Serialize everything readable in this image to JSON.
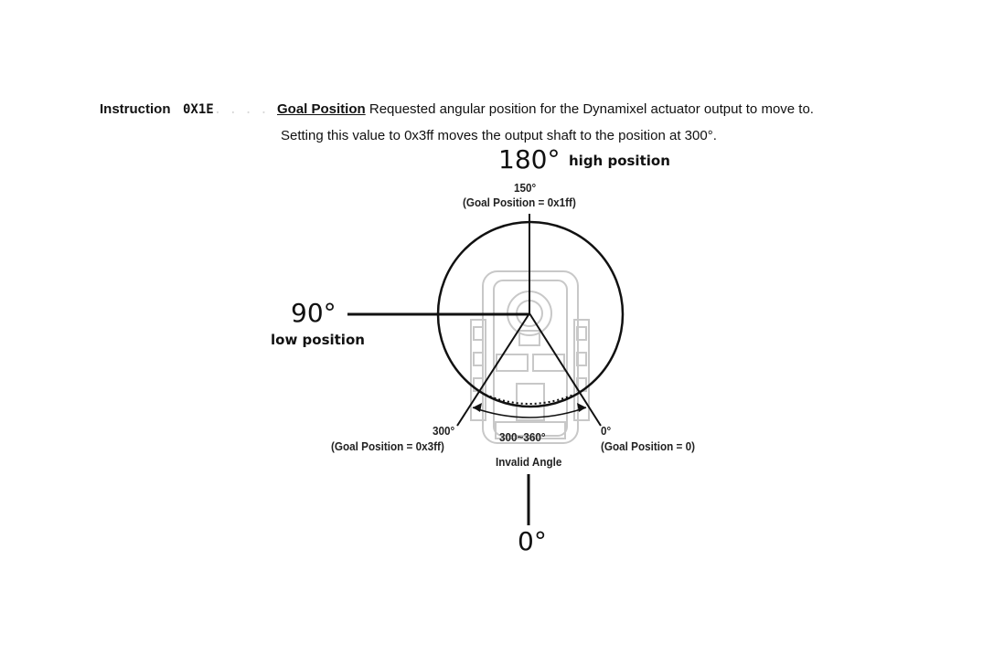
{
  "header": {
    "instruction_label": "Instruction",
    "instruction_code": "0X1E",
    "instruction_code_faded": ". . . .",
    "goal_position_term": "Goal Position",
    "goal_position_description": " Requested angular position for the Dynamixel actuator output to move to.",
    "note": "Setting this value to 0x3ff moves the output shaft to the position at 300°."
  },
  "annotations": {
    "angle_180": "180°",
    "high_position": "high position",
    "angle_90": "90°",
    "low_position": "low position",
    "angle_0": "0°"
  },
  "servo_diagram": {
    "label_150_deg": "150°",
    "label_150_goal": "(Goal Position = 0x1ff)",
    "label_300_deg": "300°",
    "label_300_goal": "(Goal Position = 0x3ff)",
    "label_0_deg": "0°",
    "label_0_goal": "(Goal Position = 0)",
    "invalid_range": "300~360°",
    "invalid_label": "Invalid Angle"
  },
  "colors": {
    "line": "#111111",
    "servo_outline": "#c8c8c8"
  }
}
